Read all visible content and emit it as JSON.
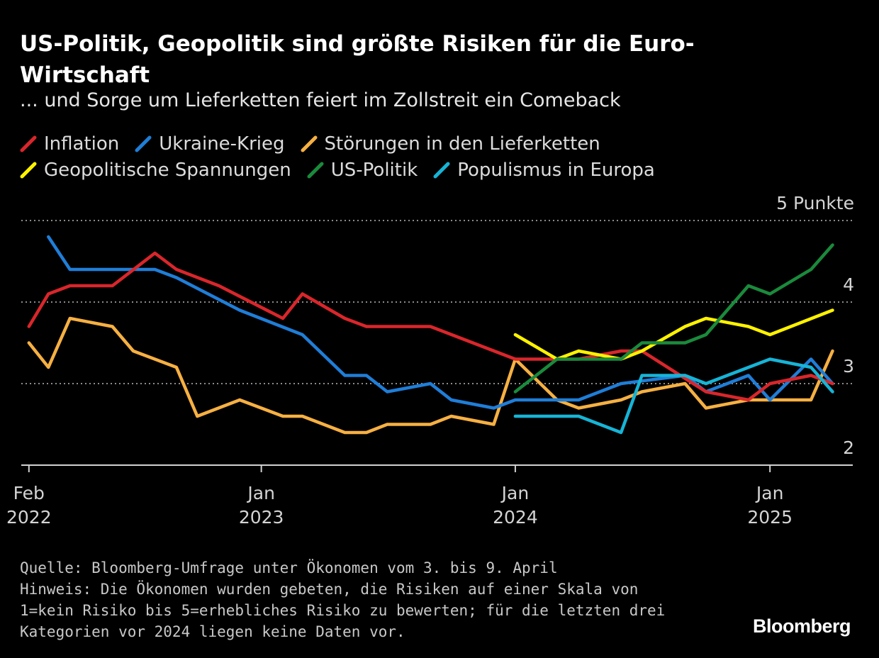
{
  "header": {
    "title": "US-Politik, Geopolitik sind größte Risiken für die Euro-Wirtschaft",
    "subtitle": "... und Sorge um Lieferketten feiert im Zollstreit ein Comeback"
  },
  "footer": {
    "source": "Quelle: Bloomberg-Umfrage unter Ökonomen vom 3. bis 9. April",
    "note_line1": "Hinweis: Die Ökonomen wurden gebeten, die Risiken auf einer Skala von",
    "note_line2": "1=kein Risiko bis 5=erhebliches Risiko zu bewerten; für die letzten drei",
    "note_line3": "Kategorien vor 2024 liegen keine Daten vor.",
    "brand": "Bloomberg"
  },
  "chart_data": {
    "type": "line",
    "title": "US-Politik, Geopolitik sind größte Risiken für die Euro-Wirtschaft",
    "subtitle": "... und Sorge um Lieferketten feiert im Zollstreit ein Comeback",
    "x_range": [
      "2022-01-21",
      "2025-04-30"
    ],
    "ylim": [
      2,
      5
    ],
    "y_ticks": [
      2,
      3,
      4,
      5
    ],
    "y_tick_labels": [
      "2",
      "3",
      "4",
      "5 Punkte"
    ],
    "x_ticks": [
      {
        "date": "2022-02-01",
        "line1": "Feb",
        "line2": "2022"
      },
      {
        "date": "2023-01-01",
        "line1": "Jan",
        "line2": "2023"
      },
      {
        "date": "2024-01-01",
        "line1": "Jan",
        "line2": "2024"
      },
      {
        "date": "2025-01-01",
        "line1": "Jan",
        "line2": "2025"
      }
    ],
    "grid": "horizontal dotted",
    "legend_position": "top-left",
    "series": [
      {
        "name": "Inflation",
        "color": "#d9262b",
        "points": [
          [
            "2022-02-01",
            3.7
          ],
          [
            "2022-03-01",
            4.1
          ],
          [
            "2022-04-01",
            4.2
          ],
          [
            "2022-06-01",
            4.2
          ],
          [
            "2022-08-01",
            4.6
          ],
          [
            "2022-09-01",
            4.4
          ],
          [
            "2022-11-01",
            4.2
          ],
          [
            "2023-02-01",
            3.8
          ],
          [
            "2023-03-01",
            4.1
          ],
          [
            "2023-05-01",
            3.8
          ],
          [
            "2023-06-01",
            3.7
          ],
          [
            "2023-09-01",
            3.7
          ],
          [
            "2024-01-01",
            3.3
          ],
          [
            "2024-04-01",
            3.3
          ],
          [
            "2024-06-01",
            3.4
          ],
          [
            "2024-07-01",
            3.4
          ],
          [
            "2024-10-01",
            2.9
          ],
          [
            "2024-12-01",
            2.8
          ],
          [
            "2025-01-01",
            3.0
          ],
          [
            "2025-03-01",
            3.1
          ],
          [
            "2025-04-01",
            3.0
          ]
        ]
      },
      {
        "name": "Ukraine-Krieg",
        "color": "#1f7ed8",
        "points": [
          [
            "2022-03-01",
            4.8
          ],
          [
            "2022-04-01",
            4.4
          ],
          [
            "2022-08-01",
            4.4
          ],
          [
            "2022-09-01",
            4.3
          ],
          [
            "2022-12-01",
            3.9
          ],
          [
            "2023-03-01",
            3.6
          ],
          [
            "2023-05-01",
            3.1
          ],
          [
            "2023-06-01",
            3.1
          ],
          [
            "2023-07-01",
            2.9
          ],
          [
            "2023-09-01",
            3.0
          ],
          [
            "2023-10-01",
            2.8
          ],
          [
            "2023-12-01",
            2.7
          ],
          [
            "2024-01-01",
            2.8
          ],
          [
            "2024-04-01",
            2.8
          ],
          [
            "2024-06-01",
            3.0
          ],
          [
            "2024-09-01",
            3.1
          ],
          [
            "2024-10-01",
            2.9
          ],
          [
            "2024-12-01",
            3.1
          ],
          [
            "2025-01-01",
            2.8
          ],
          [
            "2025-03-01",
            3.3
          ],
          [
            "2025-04-01",
            3.0
          ]
        ]
      },
      {
        "name": "Störungen in den Lieferketten",
        "color": "#f6b042",
        "points": [
          [
            "2022-02-01",
            3.5
          ],
          [
            "2022-03-01",
            3.2
          ],
          [
            "2022-04-01",
            3.8
          ],
          [
            "2022-06-01",
            3.7
          ],
          [
            "2022-07-01",
            3.4
          ],
          [
            "2022-09-01",
            3.2
          ],
          [
            "2022-10-01",
            2.6
          ],
          [
            "2022-12-01",
            2.8
          ],
          [
            "2023-02-01",
            2.6
          ],
          [
            "2023-03-01",
            2.6
          ],
          [
            "2023-05-01",
            2.4
          ],
          [
            "2023-06-01",
            2.4
          ],
          [
            "2023-07-01",
            2.5
          ],
          [
            "2023-09-01",
            2.5
          ],
          [
            "2023-10-01",
            2.6
          ],
          [
            "2023-12-01",
            2.5
          ],
          [
            "2024-01-01",
            3.3
          ],
          [
            "2024-03-01",
            2.8
          ],
          [
            "2024-04-01",
            2.7
          ],
          [
            "2024-06-01",
            2.8
          ],
          [
            "2024-07-01",
            2.9
          ],
          [
            "2024-09-01",
            3.0
          ],
          [
            "2024-10-01",
            2.7
          ],
          [
            "2024-12-01",
            2.8
          ],
          [
            "2025-03-01",
            2.8
          ],
          [
            "2025-04-01",
            3.4
          ]
        ]
      },
      {
        "name": "Geopolitische Spannungen",
        "color": "#fff200",
        "points": [
          [
            "2024-01-01",
            3.6
          ],
          [
            "2024-03-01",
            3.3
          ],
          [
            "2024-04-01",
            3.4
          ],
          [
            "2024-06-01",
            3.3
          ],
          [
            "2024-07-01",
            3.4
          ],
          [
            "2024-09-01",
            3.7
          ],
          [
            "2024-10-01",
            3.8
          ],
          [
            "2024-12-01",
            3.7
          ],
          [
            "2025-01-01",
            3.6
          ],
          [
            "2025-04-01",
            3.9
          ]
        ]
      },
      {
        "name": "US-Politik",
        "color": "#1a8a3c",
        "points": [
          [
            "2024-01-01",
            2.9
          ],
          [
            "2024-03-01",
            3.3
          ],
          [
            "2024-06-01",
            3.3
          ],
          [
            "2024-07-01",
            3.5
          ],
          [
            "2024-09-01",
            3.5
          ],
          [
            "2024-10-01",
            3.6
          ],
          [
            "2024-12-01",
            4.2
          ],
          [
            "2025-01-01",
            4.1
          ],
          [
            "2025-03-01",
            4.4
          ],
          [
            "2025-04-01",
            4.7
          ]
        ]
      },
      {
        "name": "Populismus in Europa",
        "color": "#16b4d6",
        "points": [
          [
            "2024-01-01",
            2.6
          ],
          [
            "2024-04-01",
            2.6
          ],
          [
            "2024-06-01",
            2.4
          ],
          [
            "2024-07-01",
            3.1
          ],
          [
            "2024-09-01",
            3.1
          ],
          [
            "2024-10-01",
            3.0
          ],
          [
            "2025-01-01",
            3.3
          ],
          [
            "2025-03-01",
            3.2
          ],
          [
            "2025-04-01",
            2.9
          ]
        ]
      }
    ]
  }
}
